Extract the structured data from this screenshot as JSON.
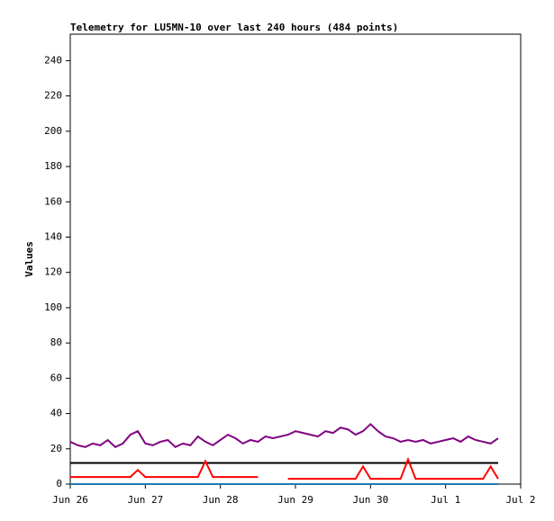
{
  "chart_data": {
    "type": "line",
    "title": "Telemetry for LU5MN-10 over last 240 hours (484 points)",
    "ylabel": "Values",
    "x": [
      0,
      0.1,
      0.2,
      0.3,
      0.4,
      0.5,
      0.6,
      0.7,
      0.8,
      0.9,
      1,
      1.1,
      1.2,
      1.3,
      1.4,
      1.5,
      1.6,
      1.7,
      1.8,
      1.9,
      2,
      2.1,
      2.2,
      2.3,
      2.4,
      2.5,
      2.6,
      2.7,
      2.8,
      2.9,
      3,
      3.1,
      3.2,
      3.3,
      3.4,
      3.5,
      3.6,
      3.7,
      3.8,
      3.9,
      4,
      4.1,
      4.2,
      4.3,
      4.4,
      4.5,
      4.6,
      4.7,
      4.8,
      4.9,
      5,
      5.1,
      5.2,
      5.3,
      5.4,
      5.5,
      5.6,
      5.7
    ],
    "series": [
      {
        "color": "#000000",
        "values": [
          12,
          12,
          12,
          12,
          12,
          12,
          12,
          12,
          12,
          12,
          12,
          12,
          12,
          12,
          12,
          12,
          12,
          12,
          12,
          12,
          12,
          12,
          12,
          12,
          12,
          12,
          12,
          12,
          12,
          12,
          12,
          12,
          12,
          12,
          12,
          12,
          12,
          12,
          12,
          12,
          12,
          12,
          12,
          12,
          12,
          12,
          12,
          12,
          12,
          12,
          12,
          12,
          12,
          12,
          12,
          12,
          12,
          12
        ]
      },
      {
        "color": "#1f77b4",
        "values": [
          0,
          0,
          0,
          0,
          0,
          0,
          0,
          0,
          0,
          0,
          0,
          0,
          0,
          0,
          0,
          0,
          0,
          0,
          0,
          0,
          0,
          0,
          0,
          0,
          0,
          0,
          0,
          0,
          0,
          0,
          0,
          0,
          0,
          0,
          0,
          0,
          0,
          0,
          0,
          0,
          0,
          0,
          0,
          0,
          0,
          0,
          0,
          0,
          0,
          0,
          0,
          0,
          0,
          0,
          0,
          0,
          0,
          0
        ]
      },
      {
        "color": "#ff0000",
        "values": [
          4,
          4,
          4,
          4,
          4,
          4,
          4,
          4,
          4,
          8,
          4,
          4,
          4,
          4,
          4,
          4,
          4,
          4,
          13,
          4,
          4,
          4,
          4,
          4,
          4,
          4,
          null,
          null,
          null,
          3,
          3,
          3,
          3,
          3,
          3,
          3,
          3,
          3,
          3,
          10,
          3,
          3,
          3,
          3,
          3,
          14,
          3,
          3,
          3,
          3,
          3,
          3,
          3,
          3,
          3,
          3,
          10,
          3
        ]
      },
      {
        "color": "#800080",
        "values": [
          24,
          22,
          21,
          23,
          22,
          25,
          21,
          23,
          28,
          30,
          23,
          22,
          24,
          25,
          21,
          23,
          22,
          27,
          24,
          22,
          25,
          28,
          26,
          23,
          25,
          24,
          27,
          26,
          27,
          28,
          30,
          29,
          28,
          27,
          30,
          29,
          32,
          31,
          28,
          30,
          34,
          30,
          27,
          26,
          24,
          25,
          24,
          25,
          23,
          24,
          25,
          26,
          24,
          27,
          25,
          24,
          23,
          26
        ]
      }
    ],
    "xlim": [
      0,
      6
    ],
    "xticks": [
      {
        "value": 0,
        "label": "Jun 26"
      },
      {
        "value": 1,
        "label": "Jun 27"
      },
      {
        "value": 2,
        "label": "Jun 28"
      },
      {
        "value": 3,
        "label": "Jun 29"
      },
      {
        "value": 4,
        "label": "Jun 30"
      },
      {
        "value": 5,
        "label": "Jul 1"
      },
      {
        "value": 6,
        "label": "Jul 2"
      }
    ],
    "ylim": [
      0,
      255
    ],
    "yticks": [
      0,
      20,
      40,
      60,
      80,
      100,
      120,
      140,
      160,
      180,
      200,
      220,
      240
    ]
  }
}
